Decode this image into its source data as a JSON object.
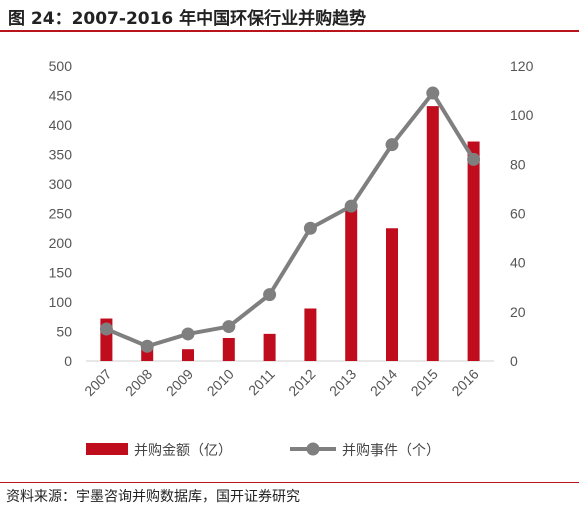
{
  "title": "图 24：2007-2016 年中国环保行业并购趋势",
  "source": "资料来源：宇墨咨询并购数据库，国开证券研究",
  "colors": {
    "bar": "#c00d1e",
    "line": "#7f7f7f",
    "rule": "#b8141c"
  },
  "chart_data": {
    "type": "bar",
    "categories": [
      "2007",
      "2008",
      "2009",
      "2010",
      "2011",
      "2012",
      "2013",
      "2014",
      "2015",
      "2016"
    ],
    "series": [
      {
        "name": "并购金额（亿）",
        "type": "bar",
        "axis": "left",
        "values": [
          72,
          22,
          20,
          39,
          46,
          89,
          258,
          225,
          432,
          372
        ]
      },
      {
        "name": "并购事件（个）",
        "type": "line",
        "axis": "right",
        "values": [
          13,
          6,
          11,
          14,
          27,
          54,
          63,
          88,
          109,
          82
        ]
      }
    ],
    "y_left": {
      "min": 0,
      "max": 500,
      "ticks": [
        "0",
        "50",
        "100",
        "150",
        "200",
        "250",
        "300",
        "350",
        "400",
        "450",
        "500"
      ]
    },
    "y_right": {
      "min": 0,
      "max": 120,
      "ticks": [
        "0",
        "20",
        "40",
        "60",
        "80",
        "100",
        "120"
      ]
    },
    "grid": false,
    "legend": "bottom"
  }
}
